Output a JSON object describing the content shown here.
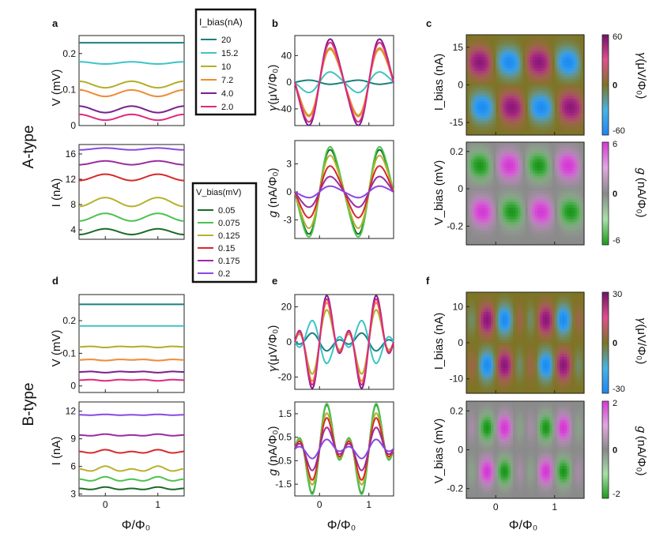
{
  "colors": {
    "ibias": [
      "#17807f",
      "#3fc3c6",
      "#b3ad2a",
      "#ef8b35",
      "#7a1f8c",
      "#e0297f"
    ],
    "vbias": [
      "#186b26",
      "#4cc24f",
      "#b7b12e",
      "#d62a2a",
      "#9a2ca0",
      "#8c47e0"
    ],
    "frame": "#222222",
    "neutral_gamma": "#7d7424",
    "neutral_g": "#8a8a8a"
  },
  "labels": {
    "panel_a": "a",
    "panel_b": "b",
    "panel_c": "c",
    "panel_d": "d",
    "panel_e": "e",
    "panel_f": "f",
    "a_type": "A-type",
    "b_type": "B-type",
    "V_mV": "V (mV)",
    "I_nA": "I (nA)",
    "gamma_uV": "𝛾(μV/Φ₀)",
    "g_nA": "𝑔 (nA/Φ₀)",
    "ibias_nA": "I_bias (nA)",
    "vbias_mV": "V_bias (mV)",
    "xaxis": "Φ/Φ₀",
    "cb_gamma": "𝛾(μV/Φ₀)",
    "cb_g": "𝑔 (nA/Φ₀)"
  },
  "legends": {
    "ibias_title": "I_bias(nA)",
    "ibias_entries": [
      "20",
      "15.2",
      "10",
      "7.2",
      "4.0",
      "2.0"
    ],
    "vbias_title": "V_bias(mV)",
    "vbias_entries": [
      "0.05",
      "0.075",
      "0.125",
      "0.15",
      "0.175",
      "0.2"
    ]
  },
  "chart_data": [
    {
      "id": "a_top",
      "type": "line",
      "ylabel": "V (mV)",
      "xlim": [
        -0.5,
        1.5
      ],
      "ylim": [
        0,
        0.25
      ],
      "yticks": [
        0.0,
        0.1,
        0.2
      ],
      "xticks": [
        0,
        1
      ],
      "series": [
        {
          "name": "20",
          "offset": 0.23,
          "amp": 0.0,
          "fund": 1
        },
        {
          "name": "15.2",
          "offset": 0.174,
          "amp": 0.003,
          "fund": 1
        },
        {
          "name": "10",
          "offset": 0.114,
          "amp": 0.009,
          "fund": 1
        },
        {
          "name": "7.2",
          "offset": 0.09,
          "amp": 0.009,
          "fund": 1
        },
        {
          "name": "4.0",
          "offset": 0.045,
          "amp": 0.009,
          "fund": 1
        },
        {
          "name": "2.0",
          "offset": 0.023,
          "amp": 0.008,
          "fund": 1
        }
      ]
    },
    {
      "id": "a_bot",
      "type": "line",
      "ylabel": "I (nA)",
      "xlim": [
        -0.5,
        1.5
      ],
      "ylim": [
        2.5,
        17.5
      ],
      "yticks": [
        4,
        8,
        12,
        16
      ],
      "xticks": [
        0,
        1
      ],
      "series": [
        {
          "name": "0.05",
          "offset": 3.7,
          "amp": -0.45,
          "fund": 1
        },
        {
          "name": "0.075",
          "offset": 6.0,
          "amp": -0.6,
          "fund": 1
        },
        {
          "name": "0.125",
          "offset": 8.4,
          "amp": -0.7,
          "fund": 1
        },
        {
          "name": "0.15",
          "offset": 12.3,
          "amp": -0.5,
          "fund": 1
        },
        {
          "name": "0.175",
          "offset": 14.6,
          "amp": -0.3,
          "fund": 1
        },
        {
          "name": "0.2",
          "offset": 16.8,
          "amp": -0.15,
          "fund": 1
        }
      ]
    },
    {
      "id": "b_top",
      "type": "line",
      "ylabel": "𝛾(μV/Φ₀)",
      "xlim": [
        -0.5,
        1.5
      ],
      "ylim": [
        -65,
        70
      ],
      "yticks": [
        -40,
        0,
        40
      ],
      "xticks": [
        0,
        1
      ],
      "series": [
        {
          "name": "20",
          "amp": -3,
          "fund": 1
        },
        {
          "name": "15.2",
          "amp": 15,
          "fund": 1
        },
        {
          "name": "10",
          "amp": 48,
          "fund": 1
        },
        {
          "name": "7.2",
          "amp": 50,
          "fund": 1
        },
        {
          "name": "4.0",
          "amp": 63,
          "fund": 1
        },
        {
          "name": "2.0",
          "amp": 58,
          "fund": 1
        }
      ]
    },
    {
      "id": "b_bot",
      "type": "line",
      "ylabel": "𝑔 (nA/Φ₀)",
      "xlim": [
        -0.5,
        1.5
      ],
      "ylim": [
        -5,
        5.5
      ],
      "yticks": [
        -3,
        0,
        3
      ],
      "xticks": [
        0,
        1
      ],
      "series": [
        {
          "name": "0.05",
          "amp": 4.4,
          "fund": 1
        },
        {
          "name": "0.075",
          "amp": 4.7,
          "fund": 1
        },
        {
          "name": "0.125",
          "amp": 3.8,
          "fund": 1
        },
        {
          "name": "0.15",
          "amp": 2.7,
          "fund": 1
        },
        {
          "name": "0.175",
          "amp": 1.6,
          "fund": 1
        },
        {
          "name": "0.2",
          "amp": 0.6,
          "fund": 1
        }
      ]
    },
    {
      "id": "c_top",
      "type": "heatmap",
      "ylabel": "I_bias (nA)",
      "xlim": [
        -0.5,
        1.5
      ],
      "ylim": [
        -20,
        20
      ],
      "yticks": [
        -15,
        0,
        15
      ],
      "cbar_ticks": [
        "60",
        "0",
        "-60"
      ],
      "palette": "gamma"
    },
    {
      "id": "c_bot",
      "type": "heatmap",
      "ylabel": "V_bias (mV)",
      "xlim": [
        -0.5,
        1.5
      ],
      "ylim": [
        -0.3,
        0.25
      ],
      "yticks": [
        -0.2,
        0.0,
        0.2
      ],
      "cbar_ticks": [
        "6",
        "0",
        "-6"
      ],
      "palette": "g"
    },
    {
      "id": "d_top",
      "type": "line",
      "ylabel": "V (mV)",
      "xlim": [
        -0.5,
        1.5
      ],
      "ylim": [
        -0.02,
        0.28
      ],
      "yticks": [
        0.0,
        0.1,
        0.2
      ],
      "xticks": [
        0,
        1
      ],
      "series": [
        {
          "name": "20",
          "offset": 0.25,
          "amp": 0.0,
          "fund": 2
        },
        {
          "name": "15.2",
          "offset": 0.184,
          "amp": 0.0,
          "fund": 2
        },
        {
          "name": "10",
          "offset": 0.12,
          "amp": 0.002,
          "fund": 2
        },
        {
          "name": "7.2",
          "offset": 0.08,
          "amp": 0.002,
          "fund": 2
        },
        {
          "name": "4.0",
          "offset": 0.043,
          "amp": 0.002,
          "fund": 2
        },
        {
          "name": "2.0",
          "offset": 0.018,
          "amp": 0.002,
          "fund": 2
        }
      ]
    },
    {
      "id": "d_bot",
      "type": "line",
      "ylabel": "I (nA)",
      "xlim": [
        -0.5,
        1.5
      ],
      "ylim": [
        2.8,
        13
      ],
      "yticks": [
        3,
        6,
        9,
        12
      ],
      "xticks": [
        0,
        1
      ],
      "xlabel": "Φ/Φ₀",
      "series": [
        {
          "name": "0.05",
          "offset": 3.6,
          "amp": -0.15,
          "fund": 2
        },
        {
          "name": "0.075",
          "offset": 4.6,
          "amp": -0.25,
          "fund": 2
        },
        {
          "name": "0.125",
          "offset": 5.7,
          "amp": -0.3,
          "fund": 2
        },
        {
          "name": "0.15",
          "offset": 7.6,
          "amp": -0.2,
          "fund": 2
        },
        {
          "name": "0.175",
          "offset": 9.4,
          "amp": -0.1,
          "fund": 2
        },
        {
          "name": "0.2",
          "offset": 11.6,
          "amp": -0.05,
          "fund": 2
        }
      ]
    },
    {
      "id": "e_top",
      "type": "line",
      "ylabel": "𝛾(μV/Φ₀)",
      "xlim": [
        -0.5,
        1.5
      ],
      "ylim": [
        -27,
        27
      ],
      "yticks": [
        -20,
        0,
        20
      ],
      "xticks": [
        0,
        1
      ],
      "series": [
        {
          "name": "20",
          "amp": -5,
          "fund": 2
        },
        {
          "name": "15.2",
          "amp": -12,
          "fund": 2
        },
        {
          "name": "10",
          "amp": 18,
          "fund": 2
        },
        {
          "name": "7.2",
          "amp": 22,
          "fund": 2
        },
        {
          "name": "4.0",
          "amp": 26,
          "fund": 2
        },
        {
          "name": "2.0",
          "amp": 24,
          "fund": 2
        }
      ]
    },
    {
      "id": "e_bot",
      "type": "line",
      "ylabel": "𝑔 (nA/Φ₀)",
      "xlim": [
        -0.5,
        1.5
      ],
      "ylim": [
        -2.0,
        2.0
      ],
      "yticks": [
        -1.5,
        -0.5,
        0.5,
        1.5
      ],
      "xticks": [
        0,
        1
      ],
      "xlabel": "Φ/Φ₀",
      "series": [
        {
          "name": "0.05",
          "amp": 1.85,
          "fund": 2
        },
        {
          "name": "0.075",
          "amp": 1.9,
          "fund": 2
        },
        {
          "name": "0.125",
          "amp": 1.5,
          "fund": 2
        },
        {
          "name": "0.15",
          "amp": 1.3,
          "fund": 2
        },
        {
          "name": "0.175",
          "amp": 0.9,
          "fund": 2
        },
        {
          "name": "0.2",
          "amp": 0.4,
          "fund": 2
        }
      ]
    },
    {
      "id": "f_top",
      "type": "heatmap",
      "ylabel": "I_bias (nA)",
      "xlim": [
        -0.5,
        1.5
      ],
      "ylim": [
        -14,
        14
      ],
      "yticks": [
        -10,
        0,
        10
      ],
      "cbar_ticks": [
        "30",
        "0",
        "-30"
      ],
      "palette": "gamma"
    },
    {
      "id": "f_bot",
      "type": "heatmap",
      "ylabel": "V_bias (mV)",
      "xlim": [
        -0.5,
        1.5
      ],
      "ylim": [
        -0.25,
        0.25
      ],
      "yticks": [
        -0.2,
        0.0,
        0.2
      ],
      "xticks": [
        0,
        1
      ],
      "xlabel": "Φ/Φ₀",
      "cbar_ticks": [
        "2",
        "0",
        "-2"
      ],
      "palette": "g"
    }
  ]
}
